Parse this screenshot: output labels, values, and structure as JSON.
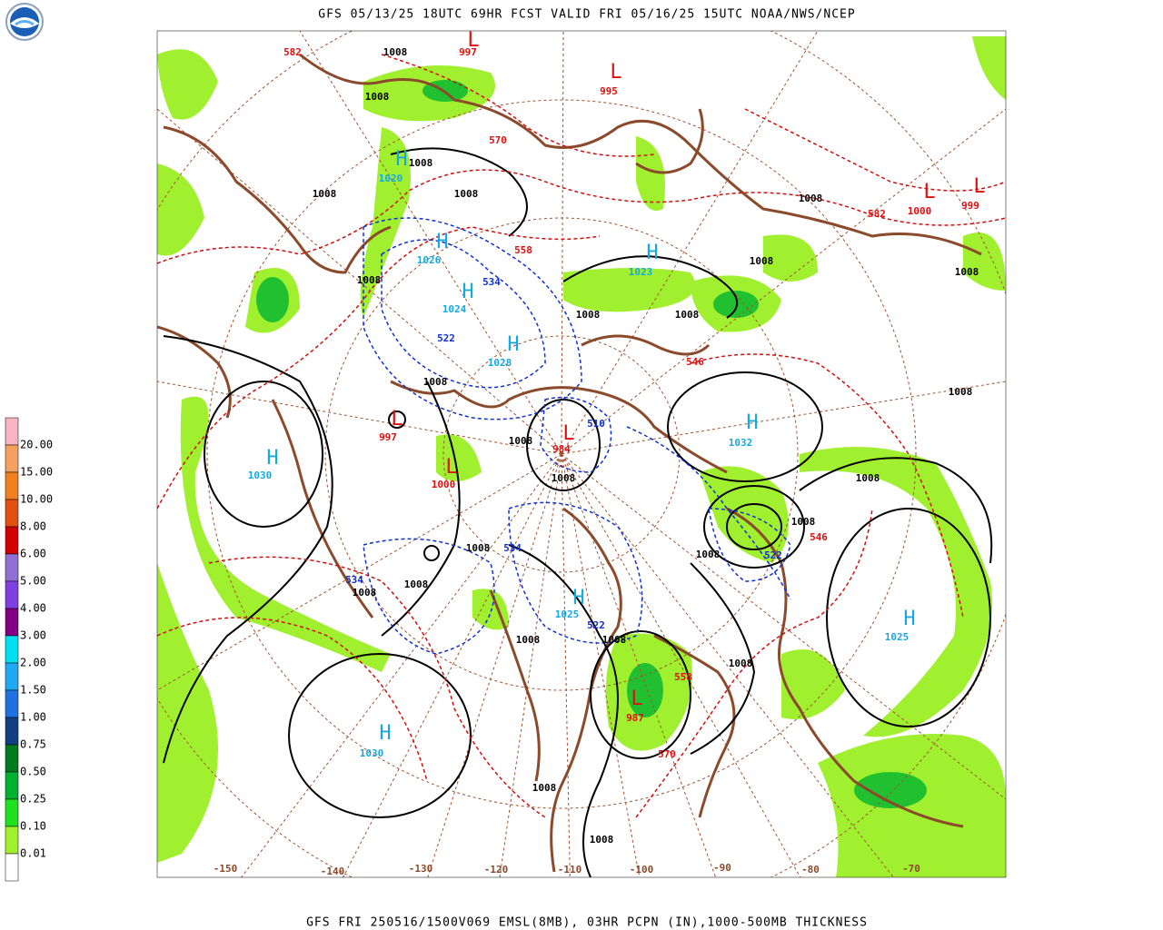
{
  "header": {
    "title": "GFS 05/13/25 18UTC 69HR FCST VALID FRI 05/16/25 15UTC NOAA/NWS/NCEP"
  },
  "footer": {
    "caption": "GFS FRI 250516/1500V069 EMSL(8MB), 03HR PCPN (IN),1000-500MB THICKNESS"
  },
  "legend": {
    "labels": [
      "20.00",
      "15.00",
      "10.00",
      "8.00",
      "6.00",
      "5.00",
      "4.00",
      "3.00",
      "2.00",
      "1.50",
      "1.00",
      "0.75",
      "0.50",
      "0.25",
      "0.10",
      "0.01"
    ],
    "colors": [
      "#f8b4c0",
      "#f4a060",
      "#f08020",
      "#e05010",
      "#d00000",
      "#9070d0",
      "#8040e0",
      "#800080",
      "#00e0f0",
      "#20a8f0",
      "#2070e0",
      "#104080",
      "#007a20",
      "#00b030",
      "#20e020",
      "#a0f030",
      "#ffffff"
    ]
  },
  "map": {
    "highs": [
      {
        "symbol": "H",
        "pressure": 1030
      },
      {
        "symbol": "H",
        "pressure": 1030
      },
      {
        "symbol": "H",
        "pressure": 1025
      },
      {
        "symbol": "H",
        "pressure": 1032
      },
      {
        "symbol": "H",
        "pressure": 1023
      },
      {
        "symbol": "H",
        "pressure": 1026
      },
      {
        "symbol": "H",
        "pressure": 1024
      },
      {
        "symbol": "H",
        "pressure": 1028
      },
      {
        "symbol": "H",
        "pressure": 1020
      },
      {
        "symbol": "H",
        "pressure": 1025
      }
    ],
    "lows": [
      {
        "symbol": "L",
        "pressure": 997
      },
      {
        "symbol": "L",
        "pressure": 995
      },
      {
        "symbol": "L",
        "pressure": 1000
      },
      {
        "symbol": "L",
        "pressure": 999
      },
      {
        "symbol": "L",
        "pressure": 987
      },
      {
        "symbol": "L",
        "pressure": 984
      },
      {
        "symbol": "L",
        "pressure": 1000
      },
      {
        "symbol": "L",
        "pressure": 997
      }
    ],
    "isobar_labels": [
      1008,
      1008,
      1008,
      1008,
      1008,
      1008,
      1008,
      1008,
      1008,
      1008,
      1008,
      1008,
      1008,
      1008,
      1008,
      1008,
      1008,
      1008,
      1008,
      1008,
      1008,
      1008,
      1008,
      1008,
      1008,
      1008
    ],
    "warm_thickness_labels": [
      582,
      570,
      558,
      546,
      570,
      582,
      546,
      558
    ],
    "cold_thickness_labels": [
      534,
      522,
      510,
      534,
      534,
      522,
      522
    ],
    "longitude_labels": [
      -150,
      -140,
      -130,
      -120,
      -110,
      -100,
      -90,
      -80,
      -70
    ]
  }
}
